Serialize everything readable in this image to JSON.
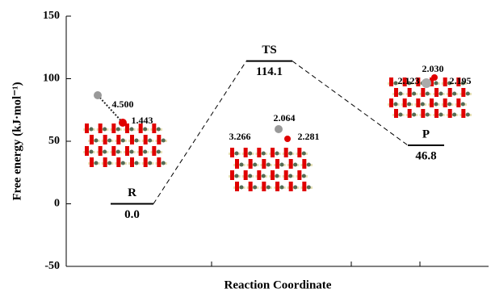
{
  "chart_data": {
    "type": "energy-diagram",
    "ylabel": "Free energy (kJ·mol⁻¹)",
    "xlabel": "Reaction Coordinate",
    "categories": [
      "R",
      "TS",
      "P"
    ],
    "values": [
      0,
      114.1,
      46.8
    ],
    "value_labels": [
      "0.0",
      "114.1",
      "46.8"
    ],
    "ylim": [
      -50,
      150
    ],
    "yticks": [
      -50,
      0,
      50,
      100,
      150
    ],
    "annotations": [
      "4.500",
      "1.443",
      "2.064",
      "3.266",
      "2.281",
      "2.030",
      "2.123",
      "2.195"
    ]
  }
}
